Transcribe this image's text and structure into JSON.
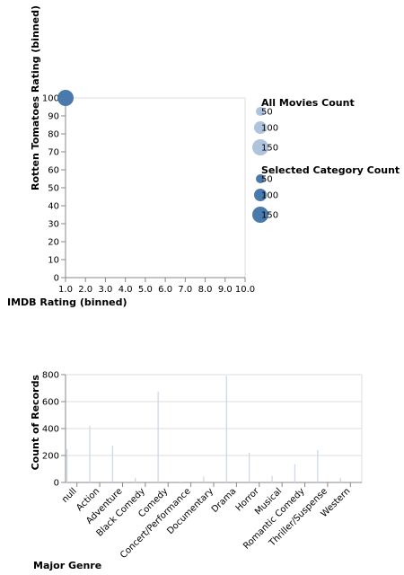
{
  "chart_data": [
    {
      "type": "scatter",
      "xlabel": "IMDB Rating (binned)",
      "ylabel": "Rotten Tomatoes Rating (binned)",
      "x_ticks": [
        "1.0",
        "2.0",
        "3.0",
        "4.0",
        "5.0",
        "6.0",
        "7.0",
        "8.0",
        "9.0",
        "10.0"
      ],
      "y_ticks": [
        "0",
        "10",
        "20",
        "30",
        "40",
        "50",
        "60",
        "70",
        "80",
        "90",
        "100"
      ],
      "xlim": [
        1,
        10
      ],
      "ylim": [
        0,
        100
      ],
      "grid": false,
      "points": [
        {
          "x": 1.0,
          "y": 100,
          "count": 150,
          "series": "Selected Category Count"
        }
      ],
      "legends": [
        {
          "title": "All Movies Count",
          "labels": [
            "50",
            "100",
            "150"
          ],
          "values": [
            50,
            100,
            150
          ],
          "color": "#aec3dd"
        },
        {
          "title": "Selected Category Count",
          "labels": [
            "50",
            "100",
            "150"
          ],
          "values": [
            50,
            100,
            150
          ],
          "color": "#4a79ab"
        }
      ],
      "legend_placement": "right"
    },
    {
      "type": "bar",
      "xlabel": "Major Genre",
      "ylabel": "Count of Records",
      "ylim": [
        0,
        800
      ],
      "y_ticks": [
        "0",
        "200",
        "400",
        "600",
        "800"
      ],
      "grid": true,
      "bar_color": "#c8d6e8",
      "categories": [
        "null",
        "Action",
        "Adventure",
        "Black Comedy",
        "Comedy",
        "Concert/Performance",
        "Documentary",
        "Drama",
        "Horror",
        "Musical",
        "Romantic Comedy",
        "Thriller/Suspense",
        "Western"
      ],
      "values": [
        245,
        420,
        275,
        35,
        675,
        5,
        45,
        790,
        220,
        50,
        135,
        240,
        35
      ]
    }
  ]
}
